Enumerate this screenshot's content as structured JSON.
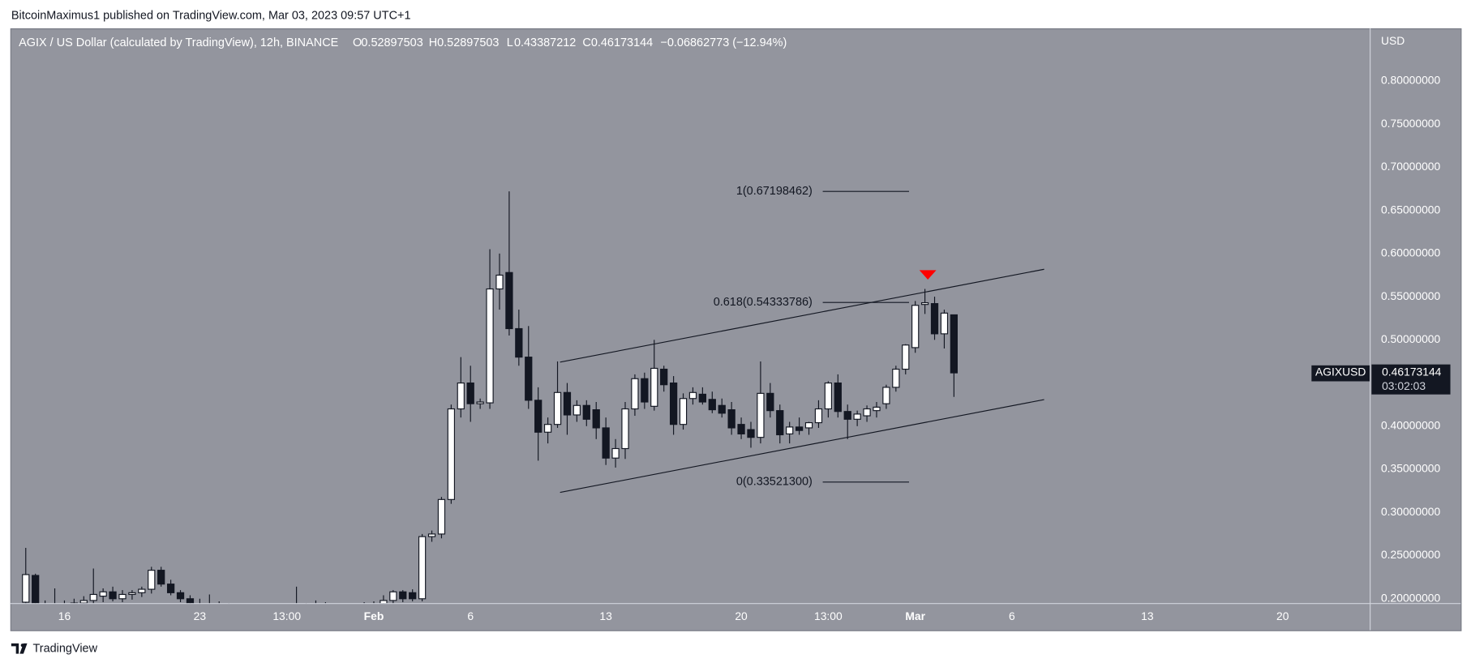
{
  "header": {
    "published": "BitcoinMaximus1 published on TradingView.com, Mar 03, 2023 09:57 UTC+1"
  },
  "footer": {
    "brand": "TradingView"
  },
  "chart_data": {
    "type": "candlestick",
    "title": "AGIX / US Dollar (calculated by TradingView), 12h, BINANCE",
    "ohlc_letters": [
      "O",
      "H",
      "L",
      "C"
    ],
    "change_label": "−0.06862773 (−12.94%)",
    "currency": "USD",
    "symbol_tag": "AGIXUSD",
    "countdown": "03:02:03",
    "up_color": "#ffffff",
    "down_color": "#131722",
    "background": "#93959e",
    "open": [
      0.196,
      0.227,
      0.193,
      0.19,
      0.192,
      0.19,
      0.195,
      0.198,
      0.203,
      0.208,
      0.2,
      0.205,
      0.207,
      0.211,
      0.233,
      0.217,
      0.207,
      0.2,
      0.194,
      0.19,
      0.193,
      0.19,
      0.188,
      0.186,
      0.188,
      0.185,
      0.187,
      0.184,
      0.186,
      0.19,
      0.188,
      0.192,
      0.189,
      0.187,
      0.19,
      0.188,
      0.193,
      0.194,
      0.198,
      0.208,
      0.207,
      0.2,
      0.272,
      0.275,
      0.315,
      0.42,
      0.45,
      0.426,
      0.427,
      0.559,
      0.578,
      0.513,
      0.48,
      0.43,
      0.393,
      0.402,
      0.439,
      0.413,
      0.424,
      0.419,
      0.398,
      0.363,
      0.374,
      0.42,
      0.455,
      0.423,
      0.466,
      0.45,
      0.402,
      0.432,
      0.437,
      0.431,
      0.424,
      0.419,
      0.402,
      0.396,
      0.387,
      0.438,
      0.418,
      0.391,
      0.399,
      0.398,
      0.404,
      0.42,
      0.45,
      0.417,
      0.408,
      0.412,
      0.418,
      0.426,
      0.445,
      0.466,
      0.491,
      0.541,
      0.542,
      0.507,
      0.52897503
    ],
    "high": [
      0.259,
      0.229,
      0.198,
      0.212,
      0.198,
      0.2,
      0.203,
      0.235,
      0.212,
      0.214,
      0.21,
      0.21,
      0.214,
      0.237,
      0.237,
      0.222,
      0.21,
      0.204,
      0.2,
      0.205,
      0.197,
      0.195,
      0.193,
      0.191,
      0.19,
      0.19,
      0.19,
      0.188,
      0.214,
      0.195,
      0.198,
      0.196,
      0.193,
      0.192,
      0.194,
      0.196,
      0.197,
      0.204,
      0.21,
      0.21,
      0.211,
      0.275,
      0.279,
      0.318,
      0.425,
      0.48,
      0.47,
      0.432,
      0.605,
      0.6,
      0.672,
      0.535,
      0.516,
      0.445,
      0.41,
      0.475,
      0.45,
      0.43,
      0.43,
      0.428,
      0.41,
      0.385,
      0.428,
      0.46,
      0.462,
      0.5,
      0.47,
      0.458,
      0.438,
      0.445,
      0.445,
      0.44,
      0.432,
      0.428,
      0.41,
      0.405,
      0.475,
      0.45,
      0.425,
      0.405,
      0.41,
      0.405,
      0.43,
      0.452,
      0.46,
      0.425,
      0.418,
      0.424,
      0.428,
      0.448,
      0.47,
      0.495,
      0.545,
      0.559,
      0.55,
      0.535,
      0.52897503
    ],
    "low": [
      0.19,
      0.19,
      0.185,
      0.185,
      0.186,
      0.186,
      0.19,
      0.194,
      0.196,
      0.197,
      0.196,
      0.199,
      0.202,
      0.206,
      0.214,
      0.204,
      0.196,
      0.19,
      0.186,
      0.186,
      0.186,
      0.185,
      0.183,
      0.182,
      0.181,
      0.18,
      0.182,
      0.18,
      0.182,
      0.185,
      0.184,
      0.186,
      0.184,
      0.183,
      0.185,
      0.185,
      0.188,
      0.19,
      0.194,
      0.196,
      0.197,
      0.197,
      0.266,
      0.27,
      0.31,
      0.41,
      0.405,
      0.42,
      0.42,
      0.535,
      0.505,
      0.47,
      0.42,
      0.36,
      0.38,
      0.398,
      0.39,
      0.405,
      0.4,
      0.385,
      0.355,
      0.352,
      0.362,
      0.412,
      0.42,
      0.418,
      0.44,
      0.39,
      0.396,
      0.425,
      0.425,
      0.415,
      0.41,
      0.39,
      0.385,
      0.375,
      0.38,
      0.41,
      0.38,
      0.38,
      0.39,
      0.39,
      0.398,
      0.41,
      0.41,
      0.385,
      0.4,
      0.405,
      0.41,
      0.42,
      0.44,
      0.46,
      0.485,
      0.53,
      0.5,
      0.49,
      0.43387212
    ],
    "close": [
      0.228,
      0.193,
      0.19,
      0.192,
      0.19,
      0.195,
      0.198,
      0.205,
      0.208,
      0.2,
      0.205,
      0.207,
      0.211,
      0.233,
      0.217,
      0.207,
      0.2,
      0.194,
      0.19,
      0.193,
      0.19,
      0.188,
      0.186,
      0.188,
      0.185,
      0.187,
      0.184,
      0.186,
      0.19,
      0.188,
      0.192,
      0.189,
      0.187,
      0.19,
      0.188,
      0.193,
      0.194,
      0.198,
      0.208,
      0.2,
      0.2,
      0.272,
      0.275,
      0.315,
      0.42,
      0.45,
      0.426,
      0.428,
      0.559,
      0.575,
      0.513,
      0.48,
      0.43,
      0.393,
      0.402,
      0.439,
      0.413,
      0.424,
      0.408,
      0.398,
      0.363,
      0.374,
      0.42,
      0.455,
      0.428,
      0.467,
      0.448,
      0.402,
      0.432,
      0.439,
      0.428,
      0.419,
      0.415,
      0.398,
      0.391,
      0.387,
      0.438,
      0.418,
      0.39,
      0.399,
      0.395,
      0.404,
      0.42,
      0.45,
      0.417,
      0.408,
      0.414,
      0.42,
      0.422,
      0.445,
      0.466,
      0.494,
      0.54,
      0.543,
      0.507,
      0.531,
      0.46173144
    ],
    "xlim": [
      -1.5,
      139
    ],
    "xticks": [
      {
        "value": 4,
        "label": "16"
      },
      {
        "value": 18,
        "label": "23"
      },
      {
        "value": 27,
        "label": "13:00"
      },
      {
        "value": 36,
        "label": "Feb"
      },
      {
        "value": 46,
        "label": "6"
      },
      {
        "value": 60,
        "label": "13"
      },
      {
        "value": 74,
        "label": "20"
      },
      {
        "value": 83,
        "label": "13:00"
      },
      {
        "value": 92,
        "label": "Mar"
      },
      {
        "value": 102,
        "label": "6"
      },
      {
        "value": 116,
        "label": "13"
      },
      {
        "value": 130,
        "label": "20"
      }
    ],
    "ylim": [
      0.195,
      0.861
    ],
    "yticks": [
      {
        "value": 0.2,
        "label": "0.20000000"
      },
      {
        "value": 0.25,
        "label": "0.25000000"
      },
      {
        "value": 0.3,
        "label": "0.30000000"
      },
      {
        "value": 0.35,
        "label": "0.35000000"
      },
      {
        "value": 0.4,
        "label": "0.40000000"
      },
      {
        "value": 0.45,
        "label": "0.45000000"
      },
      {
        "value": 0.5,
        "label": "0.50000000"
      },
      {
        "value": 0.55,
        "label": "0.55000000"
      },
      {
        "value": 0.6,
        "label": "0.60000000"
      },
      {
        "value": 0.65,
        "label": "0.65000000"
      },
      {
        "value": 0.7,
        "label": "0.70000000"
      },
      {
        "value": 0.75,
        "label": "0.75000000"
      },
      {
        "value": 0.8,
        "label": "0.80000000"
      }
    ],
    "grid": false,
    "fib_levels": [
      {
        "label": "1(0.67198462)",
        "value": 0.67198462
      },
      {
        "label": "0.618(0.54333786)",
        "value": 0.54333786
      },
      {
        "label": "0(0.33521300)",
        "value": 0.335213
      }
    ]
  }
}
